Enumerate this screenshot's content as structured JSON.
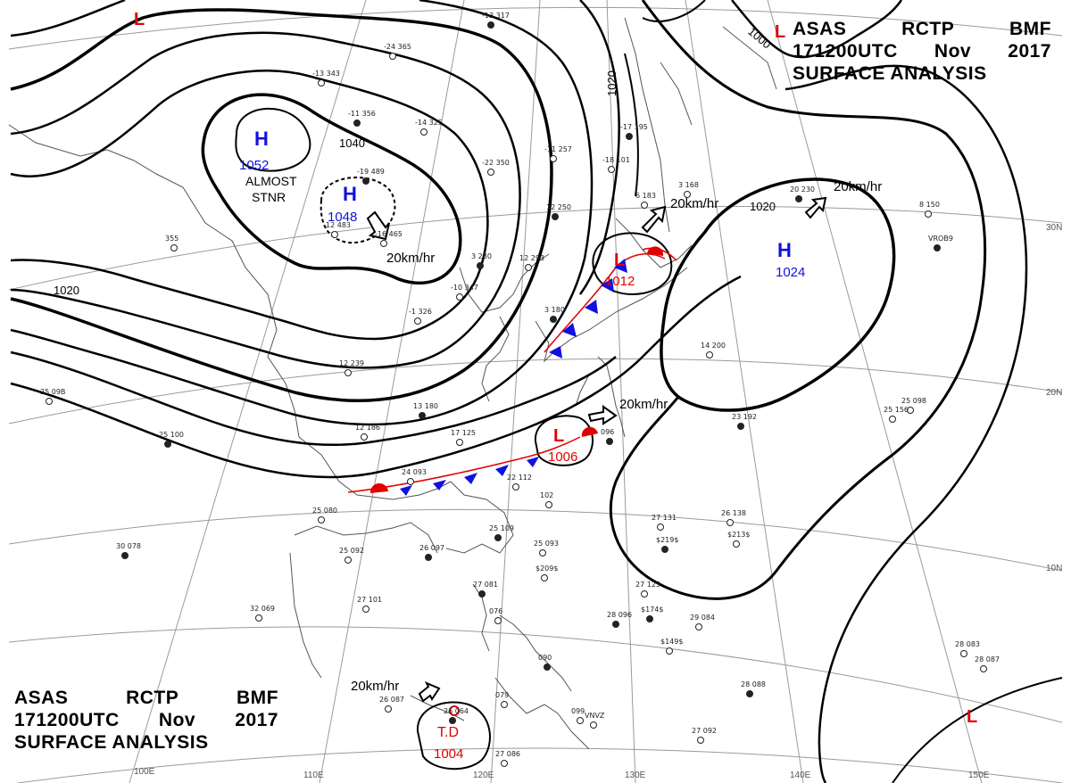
{
  "header_top": {
    "line1": [
      "ASAS",
      "RCTP",
      "BMF"
    ],
    "line2": [
      "171200UTC",
      "Nov",
      "2017"
    ],
    "line3": "SURFACE ANALYSIS"
  },
  "header_bottom": {
    "line1": [
      "ASAS",
      "RCTP",
      "BMF"
    ],
    "line2": [
      "171200UTC",
      "Nov",
      "2017"
    ],
    "line3": "SURFACE ANALYSIS"
  },
  "isobars": {
    "i1000": "1000",
    "i1020_a": "1020",
    "i1020_b": "1020",
    "i1020_c": "1020",
    "i1020_d": "1020",
    "i1040": "1040"
  },
  "pressure_centers": {
    "h1_symbol": "H",
    "h1_value": "1052",
    "h2_symbol": "H",
    "h2_value": "1048",
    "h3_symbol": "H",
    "h3_value": "1024",
    "l1_symbol": "L",
    "l1_value": "1012",
    "l2_symbol": "L",
    "l2_value": "1006",
    "td_label": "T.D",
    "td_value": "1004",
    "l_nw": "L",
    "l_ne": "L",
    "l_se": "L"
  },
  "motion": {
    "m1": "20km/hr",
    "m2": "20km/hr",
    "m3": "20km/hr",
    "m4": "20km/hr",
    "m5": "20km/hr"
  },
  "annotations": {
    "almost": "ALMOST",
    "stnr": "STNR"
  },
  "latitudes": {
    "lat30": "30N",
    "lat20": "20N",
    "lat10": "10N"
  },
  "longitudes": {
    "lon100": "100E",
    "lon110": "110E",
    "lon120": "120E",
    "lon130": "130E",
    "lon140": "140E",
    "lon150": "150E"
  },
  "stations": [
    {
      "id": "s1",
      "text": "-13 317"
    },
    {
      "id": "s2",
      "text": "-24 365"
    },
    {
      "id": "s3",
      "text": "-13 343"
    },
    {
      "id": "s4",
      "text": "-11 356"
    },
    {
      "id": "s5",
      "text": "-14 325"
    },
    {
      "id": "s6",
      "text": "-22 350"
    },
    {
      "id": "s7",
      "text": "-19 489"
    },
    {
      "id": "s8",
      "text": "-16 465"
    },
    {
      "id": "s9",
      "text": "12 483"
    },
    {
      "id": "s10",
      "text": "-17 195"
    },
    {
      "id": "s11",
      "text": "-11 257"
    },
    {
      "id": "s12",
      "text": "-18 101"
    },
    {
      "id": "s13",
      "text": "12 250"
    },
    {
      "id": "s14",
      "text": "6 183"
    },
    {
      "id": "s15",
      "text": "3 168"
    },
    {
      "id": "s16",
      "text": "20 230"
    },
    {
      "id": "s17",
      "text": "8 150"
    },
    {
      "id": "s18",
      "text": "12 293"
    },
    {
      "id": "s19",
      "text": "3 280"
    },
    {
      "id": "s20",
      "text": "-10 347"
    },
    {
      "id": "s21",
      "text": "-1 326"
    },
    {
      "id": "s22",
      "text": "3 180"
    },
    {
      "id": "s23",
      "text": "14 200"
    },
    {
      "id": "s24",
      "text": "25 098"
    },
    {
      "id": "s25",
      "text": "25 100"
    },
    {
      "id": "s26",
      "text": "12 239"
    },
    {
      "id": "s27",
      "text": "12 186"
    },
    {
      "id": "s28",
      "text": "13 180"
    },
    {
      "id": "s29",
      "text": "17 125"
    },
    {
      "id": "s30",
      "text": "25 156"
    },
    {
      "id": "s31",
      "text": "23 192"
    },
    {
      "id": "s32",
      "text": "24 093"
    },
    {
      "id": "s33",
      "text": "22 112"
    },
    {
      "id": "s34",
      "text": "096"
    },
    {
      "id": "s35",
      "text": "102"
    },
    {
      "id": "s36",
      "text": "25 080"
    },
    {
      "id": "s37",
      "text": "25 109"
    },
    {
      "id": "s38",
      "text": "25 093"
    },
    {
      "id": "s39",
      "text": "25 092"
    },
    {
      "id": "s40",
      "text": "26 097"
    },
    {
      "id": "s41",
      "text": "27 131"
    },
    {
      "id": "s42",
      "text": "26 138"
    },
    {
      "id": "s43",
      "text": "30 078"
    },
    {
      "id": "s44",
      "text": "32 069"
    },
    {
      "id": "s45",
      "text": "27 101"
    },
    {
      "id": "s46",
      "text": "27 081"
    },
    {
      "id": "s47",
      "text": "076"
    },
    {
      "id": "s48",
      "text": "27 123"
    },
    {
      "id": "s49",
      "text": "28 096"
    },
    {
      "id": "s50",
      "text": "29 084"
    },
    {
      "id": "s51",
      "text": "28 083"
    },
    {
      "id": "s52",
      "text": "090"
    },
    {
      "id": "s53",
      "text": "28 087"
    },
    {
      "id": "s54",
      "text": "26 087"
    },
    {
      "id": "s55",
      "text": "28 088"
    },
    {
      "id": "s56",
      "text": "27 092"
    },
    {
      "id": "s57",
      "text": "27 086"
    },
    {
      "id": "s58",
      "text": "26 064"
    },
    {
      "id": "s59",
      "text": "099"
    },
    {
      "id": "s60",
      "text": "079"
    },
    {
      "id": "s61",
      "text": "$219$"
    },
    {
      "id": "s62",
      "text": "$213$"
    },
    {
      "id": "s63",
      "text": "$209$"
    },
    {
      "id": "s64",
      "text": "$174$"
    },
    {
      "id": "s65",
      "text": "$149$"
    },
    {
      "id": "s66",
      "text": "VNVZ"
    },
    {
      "id": "s67",
      "text": "VROB9"
    },
    {
      "id": "s68",
      "text": "25 09B"
    },
    {
      "id": "s69",
      "text": "355"
    }
  ]
}
